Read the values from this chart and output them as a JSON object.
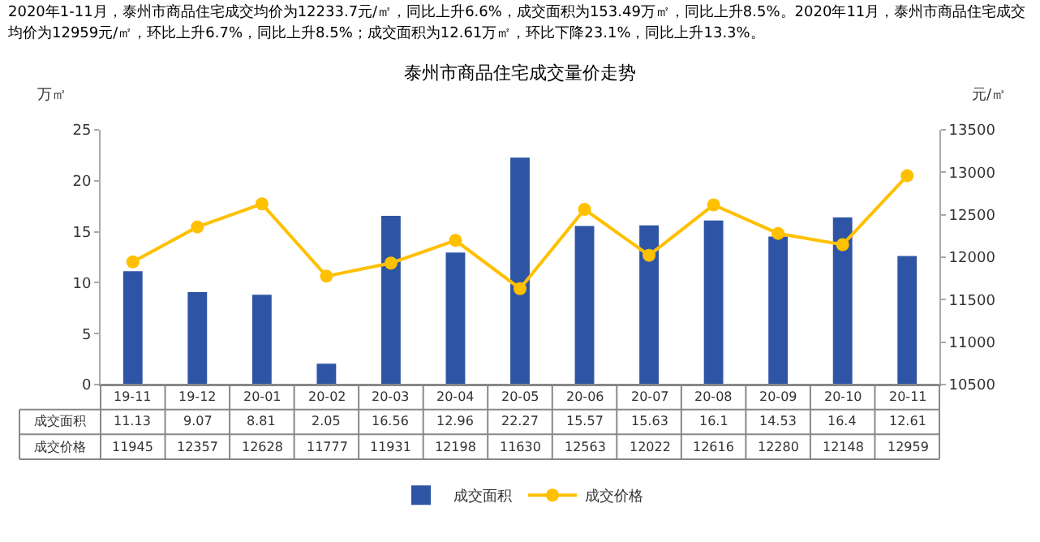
{
  "chart_data": {
    "type": "bar",
    "title": "泰州市商品住宅成交量价走势",
    "subtitle": "2020年1-11月，泰州市商品住宅成交均价为12233.7元/㎡，同比上升6.6%，成交面积为153.49万㎡，同比上升8.5%。2020年11月，泰州市商品住宅成交均价为12959元/㎡，环比上升6.7%，同比上升8.5%；成交面积为12.61万㎡，环比下降23.1%，同比上升13.3%。",
    "ylabel": "万㎡",
    "y2label": "元/㎡",
    "categories": [
      "19-11",
      "19-12",
      "20-01",
      "20-02",
      "20-03",
      "20-04",
      "20-05",
      "20-06",
      "20-07",
      "20-08",
      "20-09",
      "20-10",
      "20-11"
    ],
    "series": [
      {
        "name": "成交面积",
        "color": "#2e55a5",
        "values": [
          11.13,
          9.07,
          8.81,
          2.05,
          16.56,
          12.96,
          22.27,
          15.57,
          15.63,
          16.1,
          14.53,
          16.4,
          12.61
        ]
      },
      {
        "name": "成交价格",
        "type": "line",
        "axis": "y2",
        "color": "#ffc000",
        "marker": "circle",
        "values": [
          11945,
          12357,
          12628,
          11777,
          11931,
          12198,
          11630,
          12563,
          12022,
          12616,
          12280,
          12148,
          12959
        ]
      }
    ],
    "ylim": [
      0,
      25
    ],
    "yticks": [
      0,
      5,
      10,
      15,
      20,
      25
    ],
    "y2lim": [
      10500,
      13500
    ],
    "y2ticks": [
      10500,
      11000,
      11500,
      12000,
      12500,
      13000,
      13500
    ],
    "data_labels": true,
    "grid": false,
    "legend": "bottom"
  }
}
